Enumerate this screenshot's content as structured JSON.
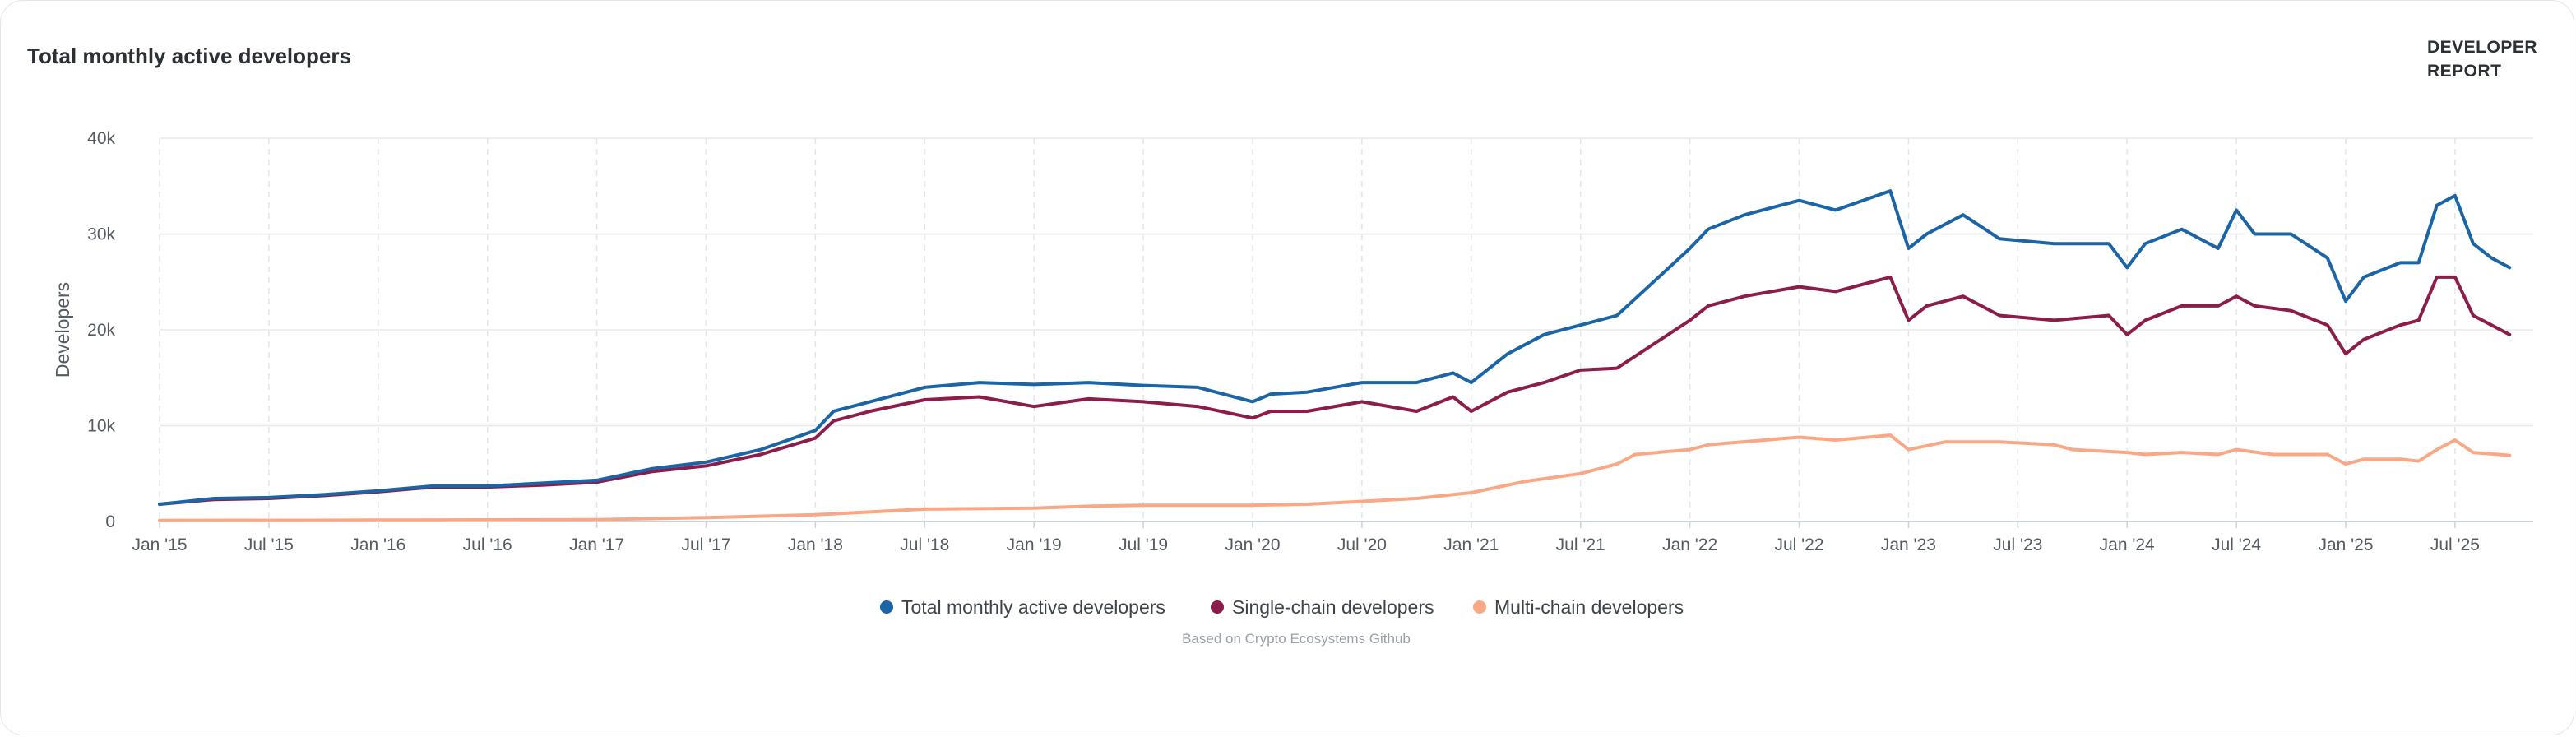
{
  "header": {
    "title": "Total monthly active developers"
  },
  "logo": {
    "line1": "DEVELOPER",
    "line2": "REPORT"
  },
  "footer": {
    "source": "Based on Crypto Ecosystems Github"
  },
  "chart_data": {
    "type": "line",
    "title": "Total monthly active developers",
    "xlabel": "",
    "ylabel": "Developers",
    "xlim": [
      "2015-01",
      "2025-10"
    ],
    "ylim": [
      0,
      40000
    ],
    "y_ticks": [
      0,
      10000,
      20000,
      30000,
      40000
    ],
    "y_tick_labels": [
      "0",
      "10k",
      "20k",
      "30k",
      "40k"
    ],
    "x_tick_labels": [
      "Jan '15",
      "Jul '15",
      "Jan '16",
      "Jul '16",
      "Jan '17",
      "Jul '17",
      "Jan '18",
      "Jul '18",
      "Jan '19",
      "Jul '19",
      "Jan '20",
      "Jul '20",
      "Jan '21",
      "Jul '21",
      "Jan '22",
      "Jul '22",
      "Jan '23",
      "Jul '23",
      "Jan '24",
      "Jul '24",
      "Jan '25",
      "Jul '25"
    ],
    "grid": true,
    "legend_position": "bottom-center",
    "series": [
      {
        "name": "Total monthly active developers",
        "color": "#1b65a6",
        "points": [
          [
            "2015-01",
            1800
          ],
          [
            "2015-04",
            2400
          ],
          [
            "2015-07",
            2500
          ],
          [
            "2015-10",
            2800
          ],
          [
            "2016-01",
            3200
          ],
          [
            "2016-04",
            3700
          ],
          [
            "2016-07",
            3700
          ],
          [
            "2016-10",
            4000
          ],
          [
            "2017-01",
            4300
          ],
          [
            "2017-04",
            5500
          ],
          [
            "2017-07",
            6200
          ],
          [
            "2017-10",
            7500
          ],
          [
            "2018-01",
            9500
          ],
          [
            "2018-02",
            11500
          ],
          [
            "2018-04",
            12500
          ],
          [
            "2018-07",
            14000
          ],
          [
            "2018-10",
            14500
          ],
          [
            "2019-01",
            14300
          ],
          [
            "2019-04",
            14500
          ],
          [
            "2019-07",
            14200
          ],
          [
            "2019-10",
            14000
          ],
          [
            "2020-01",
            12500
          ],
          [
            "2020-02",
            13300
          ],
          [
            "2020-04",
            13500
          ],
          [
            "2020-07",
            14500
          ],
          [
            "2020-10",
            14500
          ],
          [
            "2020-12",
            15500
          ],
          [
            "2021-01",
            14500
          ],
          [
            "2021-03",
            17500
          ],
          [
            "2021-05",
            19500
          ],
          [
            "2021-07",
            20500
          ],
          [
            "2021-09",
            21500
          ],
          [
            "2021-11",
            25000
          ],
          [
            "2022-01",
            28500
          ],
          [
            "2022-02",
            30500
          ],
          [
            "2022-04",
            32000
          ],
          [
            "2022-07",
            33500
          ],
          [
            "2022-09",
            32500
          ],
          [
            "2022-12",
            34500
          ],
          [
            "2023-01",
            28500
          ],
          [
            "2023-02",
            30000
          ],
          [
            "2023-04",
            32000
          ],
          [
            "2023-06",
            29500
          ],
          [
            "2023-09",
            29000
          ],
          [
            "2023-12",
            29000
          ],
          [
            "2024-01",
            26500
          ],
          [
            "2024-02",
            29000
          ],
          [
            "2024-04",
            30500
          ],
          [
            "2024-06",
            28500
          ],
          [
            "2024-07",
            32500
          ],
          [
            "2024-08",
            30000
          ],
          [
            "2024-10",
            30000
          ],
          [
            "2024-12",
            27500
          ],
          [
            "2025-01",
            23000
          ],
          [
            "2025-02",
            25500
          ],
          [
            "2025-04",
            27000
          ],
          [
            "2025-05",
            27000
          ],
          [
            "2025-06",
            33000
          ],
          [
            "2025-07",
            34000
          ],
          [
            "2025-08",
            29000
          ],
          [
            "2025-09",
            27500
          ],
          [
            "2025-10",
            26500
          ]
        ]
      },
      {
        "name": "Single-chain developers",
        "color": "#8c1c4a",
        "points": [
          [
            "2015-01",
            1800
          ],
          [
            "2015-04",
            2300
          ],
          [
            "2015-07",
            2400
          ],
          [
            "2015-10",
            2700
          ],
          [
            "2016-01",
            3100
          ],
          [
            "2016-04",
            3600
          ],
          [
            "2016-07",
            3600
          ],
          [
            "2016-10",
            3800
          ],
          [
            "2017-01",
            4100
          ],
          [
            "2017-04",
            5200
          ],
          [
            "2017-07",
            5800
          ],
          [
            "2017-10",
            7000
          ],
          [
            "2018-01",
            8700
          ],
          [
            "2018-02",
            10500
          ],
          [
            "2018-04",
            11500
          ],
          [
            "2018-07",
            12700
          ],
          [
            "2018-10",
            13000
          ],
          [
            "2019-01",
            12000
          ],
          [
            "2019-04",
            12800
          ],
          [
            "2019-07",
            12500
          ],
          [
            "2019-10",
            12000
          ],
          [
            "2020-01",
            10800
          ],
          [
            "2020-02",
            11500
          ],
          [
            "2020-04",
            11500
          ],
          [
            "2020-07",
            12500
          ],
          [
            "2020-10",
            11500
          ],
          [
            "2020-12",
            13000
          ],
          [
            "2021-01",
            11500
          ],
          [
            "2021-03",
            13500
          ],
          [
            "2021-05",
            14500
          ],
          [
            "2021-07",
            15800
          ],
          [
            "2021-09",
            16000
          ],
          [
            "2021-11",
            18500
          ],
          [
            "2022-01",
            21000
          ],
          [
            "2022-02",
            22500
          ],
          [
            "2022-04",
            23500
          ],
          [
            "2022-07",
            24500
          ],
          [
            "2022-09",
            24000
          ],
          [
            "2022-12",
            25500
          ],
          [
            "2023-01",
            21000
          ],
          [
            "2023-02",
            22500
          ],
          [
            "2023-04",
            23500
          ],
          [
            "2023-06",
            21500
          ],
          [
            "2023-09",
            21000
          ],
          [
            "2023-12",
            21500
          ],
          [
            "2024-01",
            19500
          ],
          [
            "2024-02",
            21000
          ],
          [
            "2024-04",
            22500
          ],
          [
            "2024-06",
            22500
          ],
          [
            "2024-07",
            23500
          ],
          [
            "2024-08",
            22500
          ],
          [
            "2024-10",
            22000
          ],
          [
            "2024-12",
            20500
          ],
          [
            "2025-01",
            17500
          ],
          [
            "2025-02",
            19000
          ],
          [
            "2025-04",
            20500
          ],
          [
            "2025-05",
            21000
          ],
          [
            "2025-06",
            25500
          ],
          [
            "2025-07",
            25500
          ],
          [
            "2025-08",
            21500
          ],
          [
            "2025-09",
            20500
          ],
          [
            "2025-10",
            19500
          ]
        ]
      },
      {
        "name": "Multi-chain developers",
        "color": "#f9a886",
        "points": [
          [
            "2015-01",
            100
          ],
          [
            "2016-01",
            150
          ],
          [
            "2017-01",
            200
          ],
          [
            "2017-07",
            400
          ],
          [
            "2018-01",
            700
          ],
          [
            "2018-04",
            1000
          ],
          [
            "2018-07",
            1300
          ],
          [
            "2019-01",
            1400
          ],
          [
            "2019-04",
            1600
          ],
          [
            "2019-07",
            1700
          ],
          [
            "2020-01",
            1700
          ],
          [
            "2020-04",
            1800
          ],
          [
            "2020-07",
            2100
          ],
          [
            "2020-10",
            2400
          ],
          [
            "2021-01",
            3000
          ],
          [
            "2021-04",
            4200
          ],
          [
            "2021-07",
            5000
          ],
          [
            "2021-09",
            6000
          ],
          [
            "2021-10",
            7000
          ],
          [
            "2022-01",
            7500
          ],
          [
            "2022-02",
            8000
          ],
          [
            "2022-07",
            8800
          ],
          [
            "2022-09",
            8500
          ],
          [
            "2022-12",
            9000
          ],
          [
            "2023-01",
            7500
          ],
          [
            "2023-03",
            8300
          ],
          [
            "2023-06",
            8300
          ],
          [
            "2023-09",
            8000
          ],
          [
            "2023-10",
            7500
          ],
          [
            "2024-01",
            7200
          ],
          [
            "2024-02",
            7000
          ],
          [
            "2024-04",
            7200
          ],
          [
            "2024-06",
            7000
          ],
          [
            "2024-07",
            7500
          ],
          [
            "2024-09",
            7000
          ],
          [
            "2024-12",
            7000
          ],
          [
            "2025-01",
            6000
          ],
          [
            "2025-02",
            6500
          ],
          [
            "2025-04",
            6500
          ],
          [
            "2025-05",
            6300
          ],
          [
            "2025-06",
            7500
          ],
          [
            "2025-07",
            8500
          ],
          [
            "2025-08",
            7200
          ],
          [
            "2025-10",
            6900
          ]
        ]
      }
    ]
  }
}
